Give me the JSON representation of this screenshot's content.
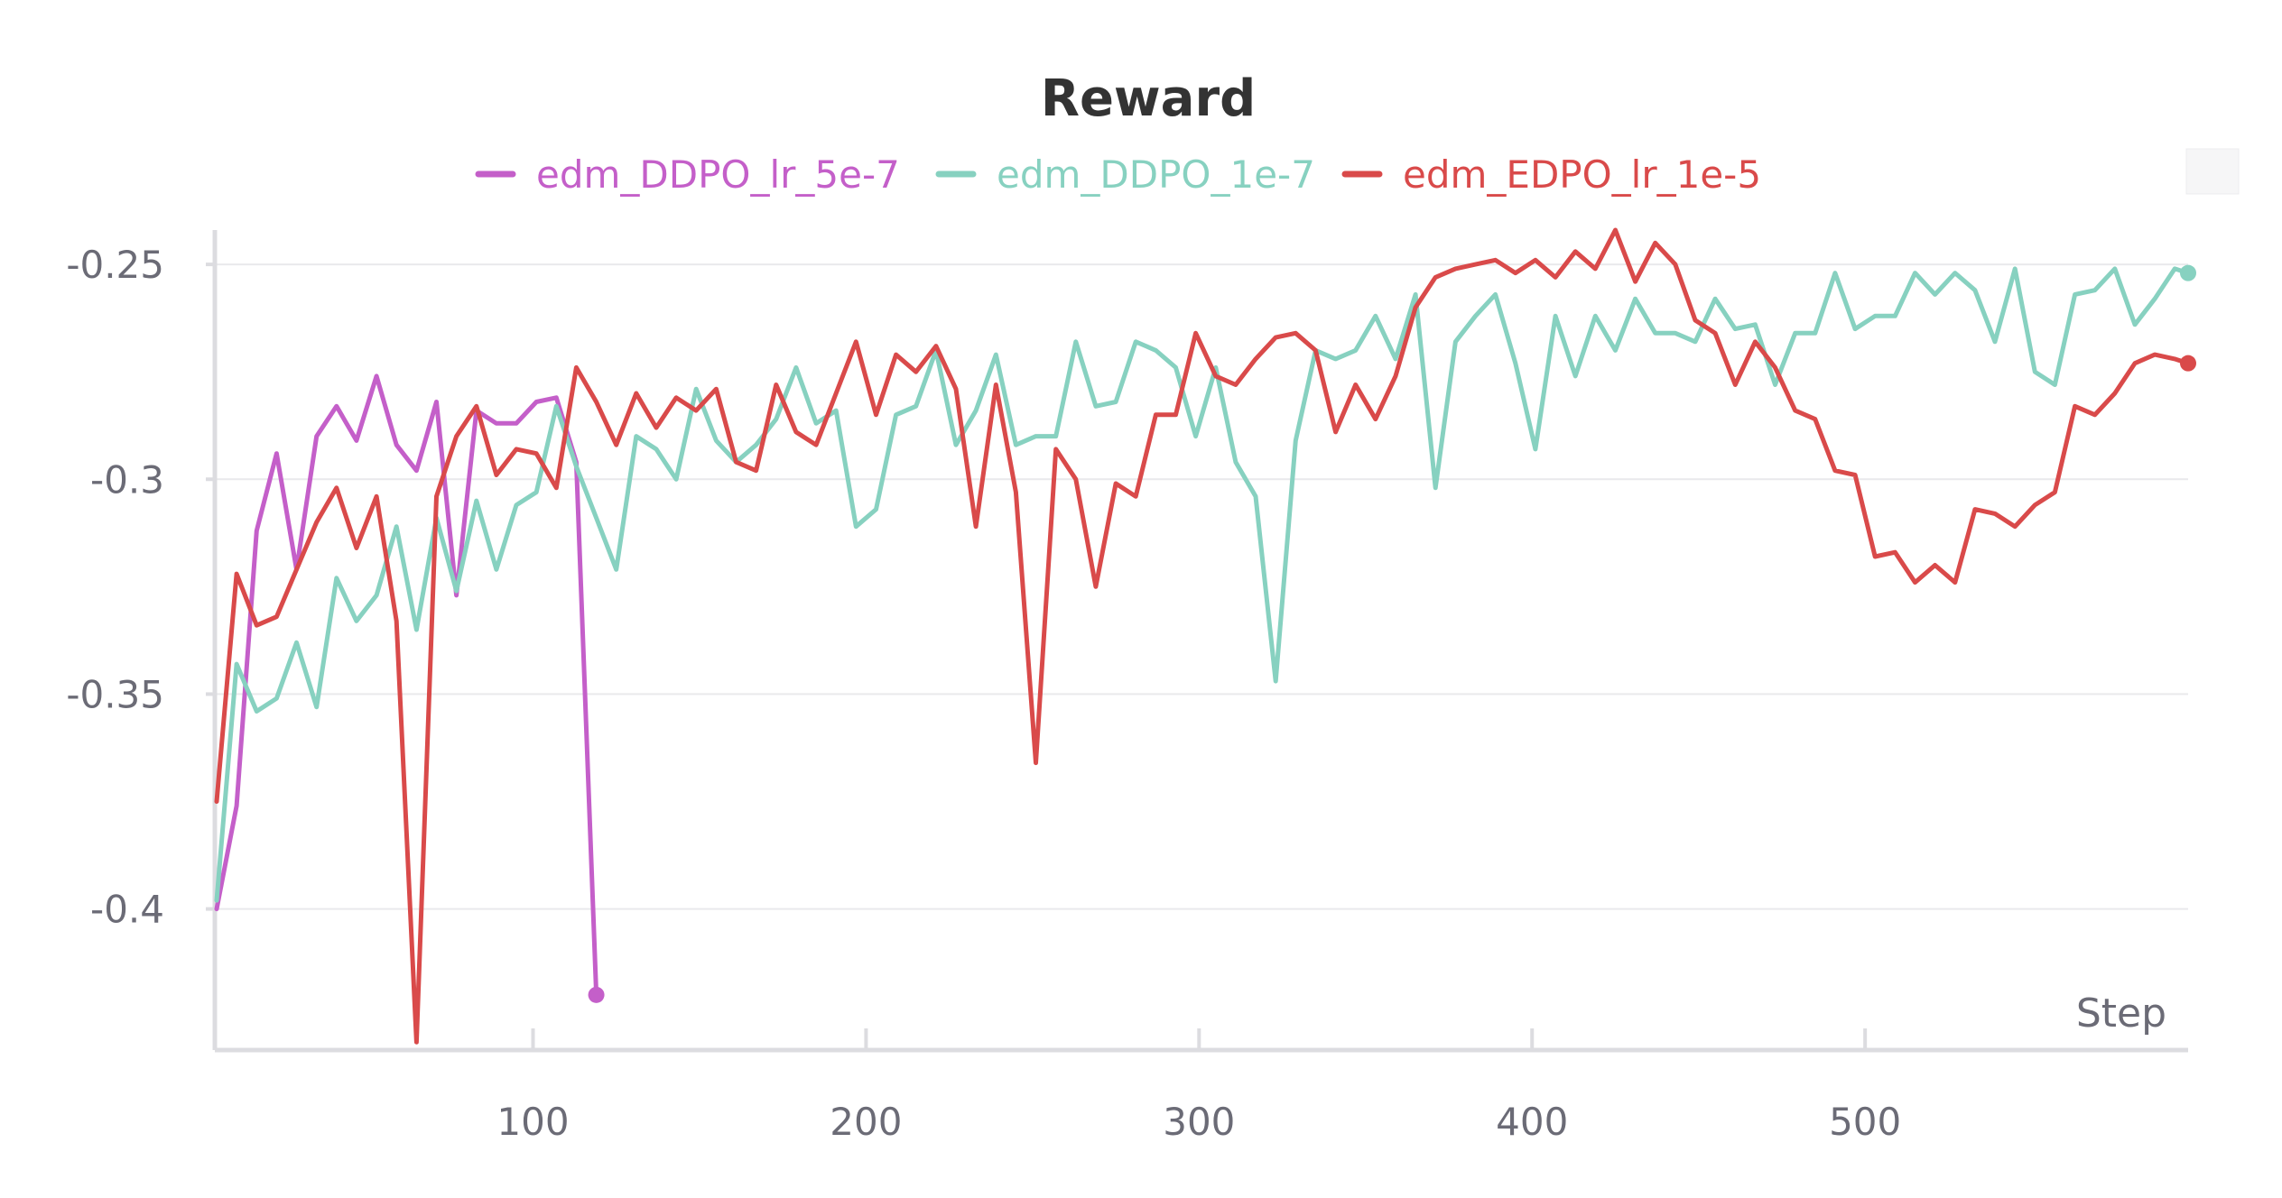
{
  "chart_data": {
    "type": "line",
    "title": "Reward",
    "xlabel": "Step",
    "ylabel": "",
    "xlim": [
      5,
      597
    ],
    "ylim": [
      -0.432,
      -0.242
    ],
    "xticks": [
      100,
      200,
      300,
      400,
      500
    ],
    "xtick_labels": [
      "100",
      "200",
      "300",
      "400",
      "500"
    ],
    "yticks": [
      -0.25,
      -0.3,
      -0.35,
      -0.4
    ],
    "ytick_labels": [
      "-0.25",
      "-0.3",
      "-0.35",
      "-0.4"
    ],
    "grid": true,
    "legend_position": "top",
    "series": [
      {
        "name": "edm_DDPO_lr_5e-7",
        "color": "#c45fc9",
        "x": [
          5,
          11,
          17,
          23,
          29,
          35,
          41,
          47,
          53,
          59,
          65,
          71,
          77,
          83,
          89,
          95,
          101,
          107,
          113,
          119
        ],
        "y": [
          -0.4,
          -0.376,
          -0.312,
          -0.294,
          -0.321,
          -0.29,
          -0.283,
          -0.291,
          -0.276,
          -0.292,
          -0.298,
          -0.282,
          -0.327,
          -0.284,
          -0.287,
          -0.287,
          -0.282,
          -0.281,
          -0.296,
          -0.42
        ]
      },
      {
        "name": "edm_DDPO_1e-7",
        "color": "#87d1c0",
        "x": [
          5,
          11,
          17,
          23,
          29,
          35,
          41,
          47,
          53,
          59,
          65,
          71,
          77,
          83,
          89,
          95,
          101,
          107,
          113,
          119,
          125,
          131,
          137,
          143,
          149,
          155,
          161,
          167,
          173,
          179,
          185,
          191,
          197,
          203,
          209,
          215,
          221,
          227,
          233,
          239,
          245,
          251,
          257,
          263,
          269,
          275,
          281,
          287,
          293,
          299,
          305,
          311,
          317,
          323,
          329,
          335,
          341,
          347,
          353,
          359,
          365,
          371,
          377,
          383,
          389,
          395,
          401,
          407,
          413,
          419,
          425,
          431,
          437,
          443,
          449,
          455,
          461,
          467,
          473,
          479,
          485,
          491,
          497,
          503,
          509,
          515,
          521,
          527,
          533,
          539,
          545,
          551,
          557,
          563,
          569,
          575,
          581,
          587,
          593,
          597
        ],
        "y": [
          -0.398,
          -0.343,
          -0.354,
          -0.351,
          -0.338,
          -0.353,
          -0.323,
          -0.333,
          -0.327,
          -0.311,
          -0.335,
          -0.309,
          -0.326,
          -0.305,
          -0.321,
          -0.306,
          -0.303,
          -0.283,
          -0.297,
          -0.309,
          -0.321,
          -0.29,
          -0.293,
          -0.3,
          -0.279,
          -0.291,
          -0.296,
          -0.292,
          -0.286,
          -0.274,
          -0.287,
          -0.284,
          -0.311,
          -0.307,
          -0.285,
          -0.283,
          -0.27,
          -0.292,
          -0.284,
          -0.271,
          -0.292,
          -0.29,
          -0.29,
          -0.268,
          -0.283,
          -0.282,
          -0.268,
          -0.27,
          -0.274,
          -0.29,
          -0.274,
          -0.296,
          -0.304,
          -0.347,
          -0.291,
          -0.27,
          -0.272,
          -0.27,
          -0.262,
          -0.272,
          -0.257,
          -0.302,
          -0.268,
          -0.262,
          -0.257,
          -0.273,
          -0.293,
          -0.262,
          -0.276,
          -0.262,
          -0.27,
          -0.258,
          -0.266,
          -0.266,
          -0.268,
          -0.258,
          -0.265,
          -0.264,
          -0.278,
          -0.266,
          -0.266,
          -0.252,
          -0.265,
          -0.262,
          -0.262,
          -0.252,
          -0.257,
          -0.252,
          -0.256,
          -0.268,
          -0.251,
          -0.275,
          -0.278,
          -0.257,
          -0.256,
          -0.251,
          -0.264,
          -0.258,
          -0.251,
          -0.252
        ]
      },
      {
        "name": "edm_EDPO_lr_1e-5",
        "color": "#d94a4a",
        "x": [
          5,
          11,
          17,
          23,
          29,
          35,
          41,
          47,
          53,
          59,
          65,
          71,
          77,
          83,
          89,
          95,
          101,
          107,
          113,
          119,
          125,
          131,
          137,
          143,
          149,
          155,
          161,
          167,
          173,
          179,
          185,
          191,
          197,
          203,
          209,
          215,
          221,
          227,
          233,
          239,
          245,
          251,
          257,
          263,
          269,
          275,
          281,
          287,
          293,
          299,
          305,
          311,
          317,
          323,
          329,
          335,
          341,
          347,
          353,
          359,
          365,
          371,
          377,
          383,
          389,
          395,
          401,
          407,
          413,
          419,
          425,
          431,
          437,
          443,
          449,
          455,
          461,
          467,
          473,
          479,
          485,
          491,
          497,
          503,
          509,
          515,
          521,
          527,
          533,
          539,
          545,
          551,
          557,
          563,
          569,
          575,
          581,
          587,
          593,
          597
        ],
        "y": [
          -0.375,
          -0.322,
          -0.334,
          -0.332,
          -0.321,
          -0.31,
          -0.302,
          -0.316,
          -0.304,
          -0.333,
          -0.431,
          -0.304,
          -0.29,
          -0.283,
          -0.299,
          -0.293,
          -0.294,
          -0.302,
          -0.274,
          -0.282,
          -0.292,
          -0.28,
          -0.288,
          -0.281,
          -0.284,
          -0.279,
          -0.296,
          -0.298,
          -0.278,
          -0.289,
          -0.292,
          -0.28,
          -0.268,
          -0.285,
          -0.271,
          -0.275,
          -0.269,
          -0.279,
          -0.311,
          -0.278,
          -0.303,
          -0.366,
          -0.293,
          -0.3,
          -0.325,
          -0.301,
          -0.304,
          -0.285,
          -0.285,
          -0.266,
          -0.276,
          -0.278,
          -0.272,
          -0.267,
          -0.266,
          -0.27,
          -0.289,
          -0.278,
          -0.286,
          -0.276,
          -0.26,
          -0.253,
          -0.251,
          -0.25,
          -0.249,
          -0.252,
          -0.249,
          -0.253,
          -0.247,
          -0.251,
          -0.242,
          -0.254,
          -0.245,
          -0.25,
          -0.263,
          -0.266,
          -0.278,
          -0.268,
          -0.274,
          -0.284,
          -0.286,
          -0.298,
          -0.299,
          -0.318,
          -0.317,
          -0.324,
          -0.32,
          -0.324,
          -0.307,
          -0.308,
          -0.311,
          -0.306,
          -0.303,
          -0.283,
          -0.285,
          -0.28,
          -0.273,
          -0.271,
          -0.272,
          -0.273
        ]
      }
    ]
  }
}
